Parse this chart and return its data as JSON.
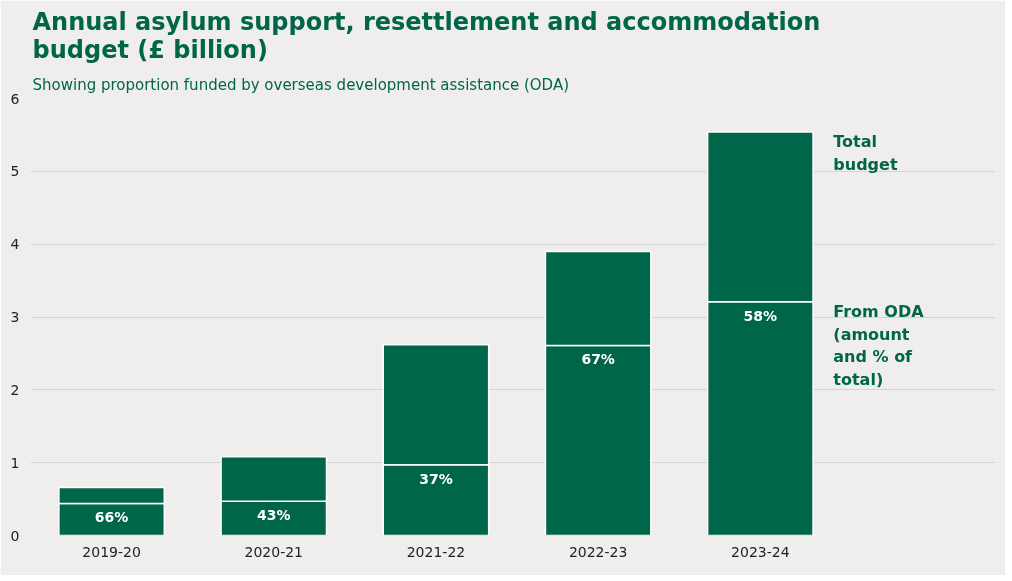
{
  "chart_data": {
    "type": "bar",
    "title": "Annual asylum support, resettlement and accommodation budget (£ billion)",
    "subtitle": "Showing proportion funded by overseas development assistance (ODA)",
    "categories": [
      "2019-20",
      "2020-21",
      "2021-22",
      "2022-23",
      "2023-24"
    ],
    "stacked": true,
    "legend": false,
    "grid": "y",
    "ylim": [
      0,
      6
    ],
    "yticks": [
      0,
      1,
      2,
      3,
      4,
      5,
      6
    ],
    "series": [
      {
        "name": "From ODA (amount and % of total)",
        "color": "#00664a",
        "values": [
          0.44,
          0.47,
          0.97,
          2.61,
          3.21
        ]
      },
      {
        "name": "Total budget",
        "color": "#00664a",
        "values": [
          0.22,
          0.61,
          1.65,
          1.29,
          2.33
        ]
      }
    ],
    "annotations": [
      {
        "text": "66%",
        "x": "2019-20",
        "y": 0.44
      },
      {
        "text": "43%",
        "x": "2020-21",
        "y": 0.47
      },
      {
        "text": "37%",
        "x": "2021-22",
        "y": 0.97
      },
      {
        "text": "67%",
        "x": "2022-23",
        "y": 2.61
      },
      {
        "text": "58%",
        "x": "2023-24",
        "y": 3.21
      }
    ]
  }
}
